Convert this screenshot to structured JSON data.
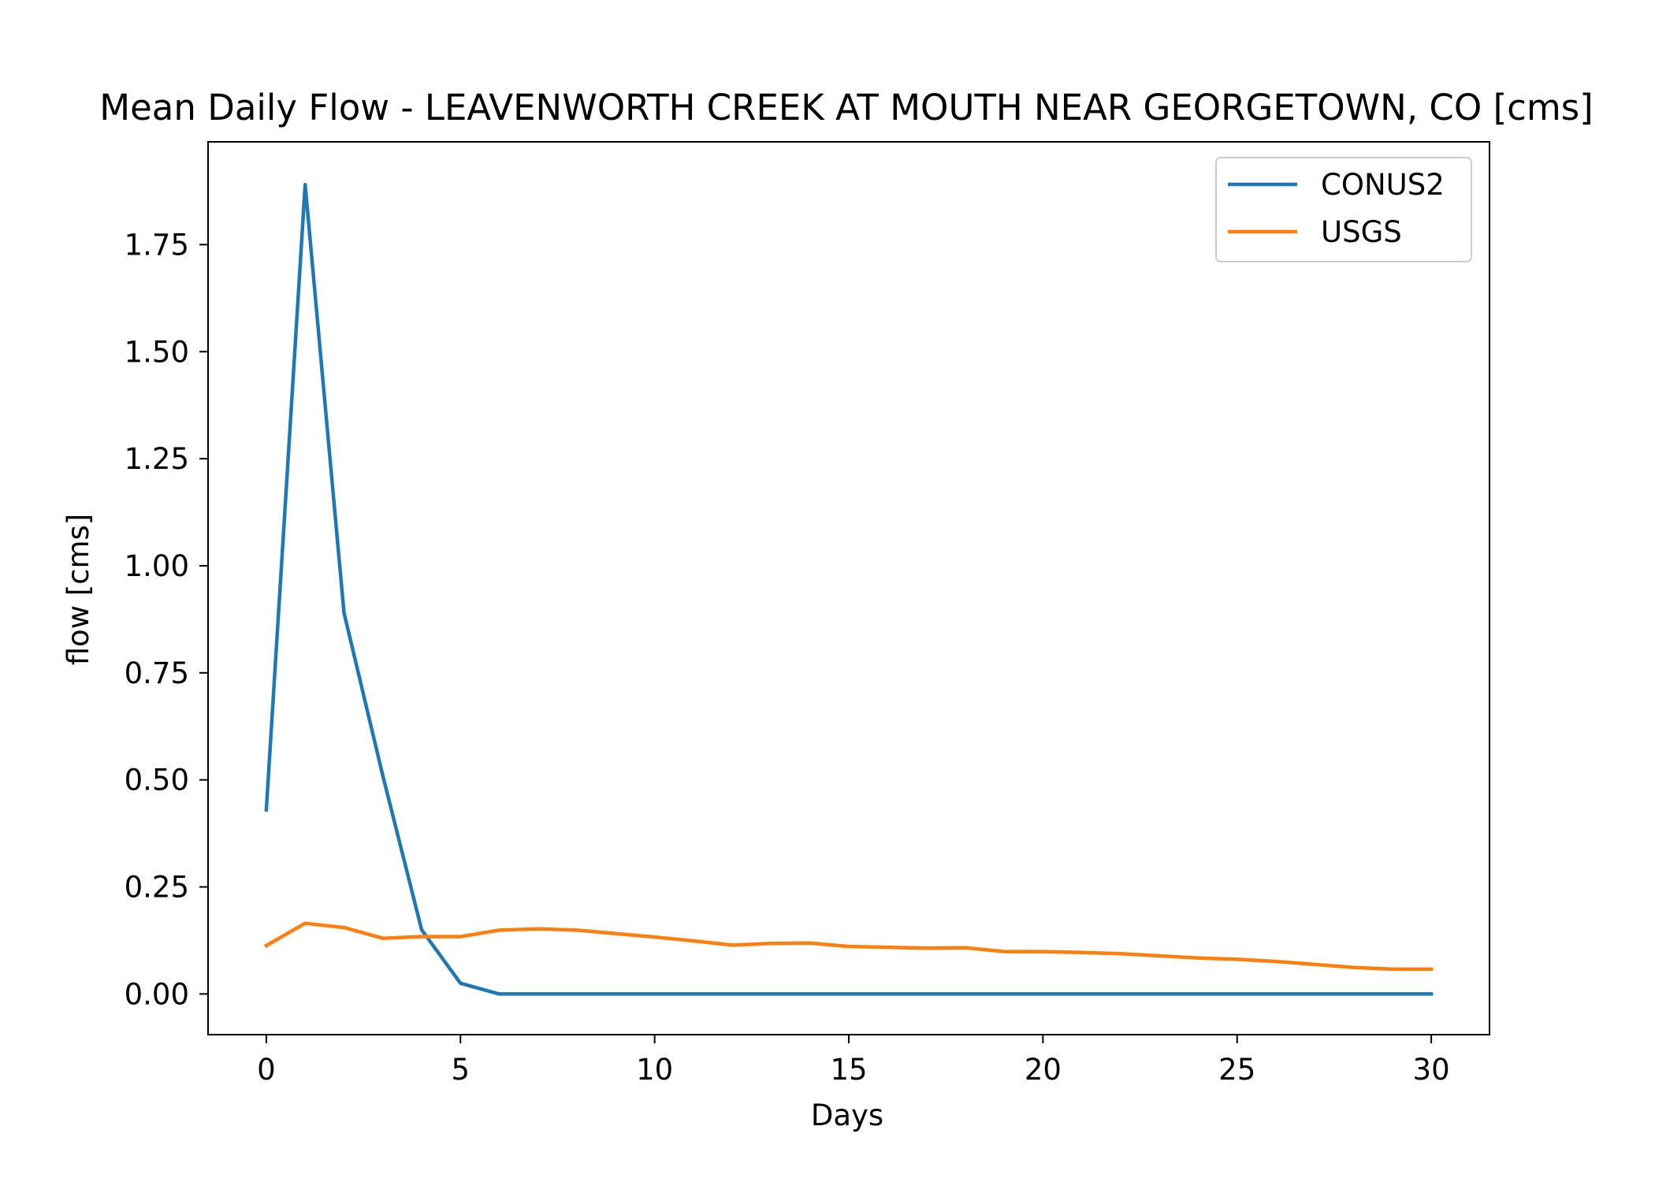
{
  "chart_data": {
    "type": "line",
    "title": "Mean Daily Flow - LEAVENWORTH CREEK AT MOUTH NEAR GEORGETOWN, CO [cms]",
    "xlabel": "Days",
    "ylabel": "flow [cms]",
    "xlim": [
      -1.5,
      31.5
    ],
    "ylim": [
      -0.095,
      1.99
    ],
    "xticks": [
      0,
      5,
      10,
      15,
      20,
      25,
      30
    ],
    "xtick_labels": [
      "0",
      "5",
      "10",
      "15",
      "20",
      "25",
      "30"
    ],
    "yticks": [
      0.0,
      0.25,
      0.5,
      0.75,
      1.0,
      1.25,
      1.5,
      1.75
    ],
    "ytick_labels": [
      "0.00",
      "0.25",
      "0.50",
      "0.75",
      "1.00",
      "1.25",
      "1.50",
      "1.75"
    ],
    "grid": false,
    "legend_position": "top-right",
    "x": [
      0,
      1,
      2,
      3,
      4,
      5,
      6,
      7,
      8,
      9,
      10,
      11,
      12,
      13,
      14,
      15,
      16,
      17,
      18,
      19,
      20,
      21,
      22,
      23,
      24,
      25,
      26,
      27,
      28,
      29,
      30
    ],
    "series": [
      {
        "name": "CONUS2",
        "color": "#1f77b4",
        "values": [
          0.43,
          1.89,
          0.89,
          0.51,
          0.15,
          0.025,
          0.0,
          0.0,
          0.0,
          0.0,
          0.0,
          0.0,
          0.0,
          0.0,
          0.0,
          0.0,
          0.0,
          0.0,
          0.0,
          0.0,
          0.0,
          0.0,
          0.0,
          0.0,
          0.0,
          0.0,
          0.0,
          0.0,
          0.0,
          0.0,
          0.0
        ]
      },
      {
        "name": "USGS",
        "color": "#ff7f0e",
        "values": [
          0.113,
          0.165,
          0.155,
          0.13,
          0.134,
          0.134,
          0.149,
          0.152,
          0.149,
          0.141,
          0.133,
          0.124,
          0.114,
          0.118,
          0.119,
          0.111,
          0.109,
          0.107,
          0.108,
          0.099,
          0.099,
          0.097,
          0.094,
          0.089,
          0.084,
          0.081,
          0.076,
          0.069,
          0.062,
          0.058,
          0.058
        ]
      }
    ]
  }
}
